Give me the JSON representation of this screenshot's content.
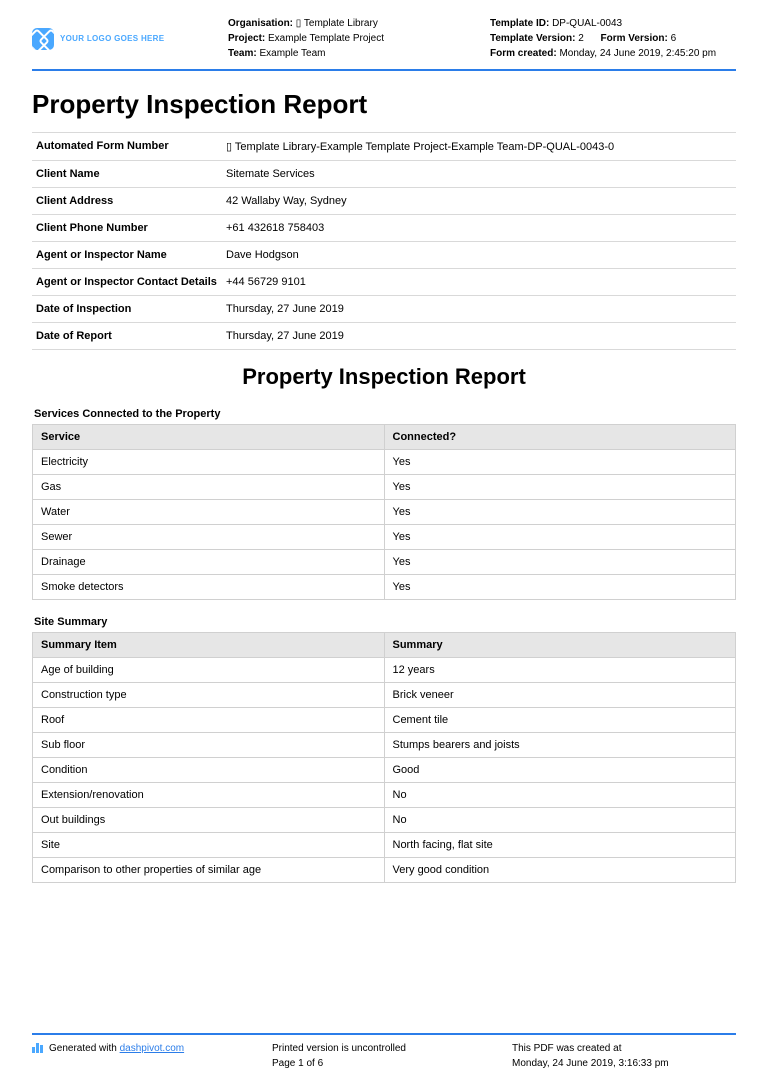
{
  "logo": {
    "placeholder": "YOUR LOGO GOES HERE"
  },
  "header": {
    "left": {
      "organisation_label": "Organisation:",
      "organisation_value": "▯ Template Library",
      "project_label": "Project:",
      "project_value": "Example Template Project",
      "team_label": "Team:",
      "team_value": "Example Team"
    },
    "right": {
      "template_id_label": "Template ID:",
      "template_id_value": "DP-QUAL-0043",
      "template_version_label": "Template Version:",
      "template_version_value": "2",
      "form_version_label": "Form Version:",
      "form_version_value": "6",
      "form_created_label": "Form created:",
      "form_created_value": "Monday, 24 June 2019, 2:45:20 pm"
    }
  },
  "title": "Property Inspection Report",
  "details": [
    {
      "key": "Automated Form Number",
      "value": "▯ Template Library-Example Template Project-Example Team-DP-QUAL-0043-0"
    },
    {
      "key": "Client Name",
      "value": "Sitemate Services"
    },
    {
      "key": "Client Address",
      "value": "42 Wallaby Way, Sydney"
    },
    {
      "key": "Client Phone Number",
      "value": "+61 432618 758403"
    },
    {
      "key": "Agent or Inspector Name",
      "value": "Dave Hodgson"
    },
    {
      "key": "Agent or Inspector Contact Details",
      "value": "+44 56729 9101"
    },
    {
      "key": "Date of Inspection",
      "value": "Thursday, 27 June 2019"
    },
    {
      "key": "Date of Report",
      "value": "Thursday, 27 June 2019"
    }
  ],
  "mid_title": "Property Inspection Report",
  "services_section": {
    "label": "Services Connected to the Property",
    "columns": [
      "Service",
      "Connected?"
    ],
    "rows": [
      [
        "Electricity",
        "Yes"
      ],
      [
        "Gas",
        "Yes"
      ],
      [
        "Water",
        "Yes"
      ],
      [
        "Sewer",
        "Yes"
      ],
      [
        "Drainage",
        "Yes"
      ],
      [
        "Smoke detectors",
        "Yes"
      ]
    ]
  },
  "summary_section": {
    "label": "Site Summary",
    "columns": [
      "Summary Item",
      "Summary"
    ],
    "rows": [
      [
        "Age of building",
        "12 years"
      ],
      [
        "Construction type",
        "Brick veneer"
      ],
      [
        "Roof",
        "Cement tile"
      ],
      [
        "Sub floor",
        "Stumps bearers and joists"
      ],
      [
        "Condition",
        "Good"
      ],
      [
        "Extension/renovation",
        "No"
      ],
      [
        "Out buildings",
        "No"
      ],
      [
        "Site",
        "North facing, flat site"
      ],
      [
        "Comparison to other properties of similar age",
        "Very good condition"
      ]
    ]
  },
  "footer": {
    "generated_prefix": "Generated with ",
    "generated_link": "dashpivot.com",
    "printed_line": "Printed version is uncontrolled",
    "page_line": "Page 1 of 6",
    "created_label": "This PDF was created at",
    "created_value": "Monday, 24 June 2019, 3:16:33 pm"
  }
}
